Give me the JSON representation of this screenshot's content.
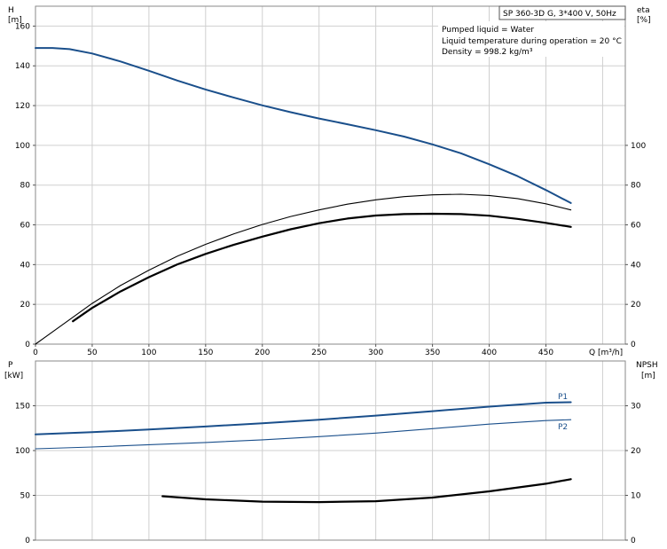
{
  "chart_data": [
    {
      "type": "line",
      "title": "SP 360-3D G, 3*400 V, 50Hz",
      "info_lines": [
        "Pumped liquid = Water",
        "Liquid temperature during operation = 20 °C",
        "Density = 998.2 kg/m³"
      ],
      "xlabel": "Q [m³/h]",
      "ylabel_left": [
        "H",
        "[m]"
      ],
      "ylabel_right": [
        "eta",
        "[%]"
      ],
      "xlim": [
        0,
        520
      ],
      "ylim_left": [
        0,
        170
      ],
      "ylim_right": [
        0,
        170
      ],
      "x_ticks": [
        0,
        50,
        100,
        150,
        200,
        250,
        300,
        350,
        400,
        450
      ],
      "y_ticks_left": [
        0,
        20,
        40,
        60,
        80,
        100,
        120,
        140,
        160
      ],
      "y_ticks_right": [
        0,
        20,
        40,
        60,
        80,
        100
      ],
      "grid": true,
      "series": [
        {
          "axis": "left",
          "color": "#1a4f8b",
          "width": 2,
          "x": [
            0,
            15,
            30,
            50,
            75,
            100,
            125,
            150,
            175,
            200,
            225,
            250,
            275,
            300,
            325,
            350,
            375,
            400,
            425,
            450,
            472
          ],
          "y": [
            149,
            149,
            148.4,
            146.2,
            142.2,
            137.5,
            132.6,
            128.1,
            124,
            120.1,
            116.7,
            113.5,
            110.6,
            107.6,
            104.4,
            100.5,
            96,
            90.5,
            84.5,
            77.5,
            71
          ]
        },
        {
          "axis": "right",
          "color": "#000000",
          "width": 1.1,
          "x": [
            0,
            33,
            50,
            75,
            100,
            125,
            150,
            175,
            200,
            225,
            250,
            275,
            300,
            325,
            350,
            375,
            400,
            425,
            450,
            472
          ],
          "y": [
            0,
            13.5,
            20.5,
            29.5,
            37.2,
            44.2,
            50.2,
            55.5,
            60.2,
            64.2,
            67.5,
            70.4,
            72.6,
            74.2,
            75.1,
            75.4,
            74.8,
            73.2,
            70.6,
            67.5
          ]
        },
        {
          "axis": "right",
          "color": "#000000",
          "width": 2.2,
          "x": [
            33,
            50,
            75,
            100,
            125,
            150,
            175,
            200,
            225,
            250,
            275,
            300,
            325,
            350,
            375,
            400,
            425,
            450,
            472
          ],
          "y": [
            11.5,
            18.2,
            26.5,
            33.7,
            40.1,
            45.4,
            50,
            54.1,
            57.8,
            60.8,
            63.2,
            64.7,
            65.4,
            65.6,
            65.4,
            64.6,
            63,
            61,
            59
          ]
        }
      ]
    },
    {
      "type": "line",
      "xlabel": "",
      "ylabel_left": [
        "P",
        "[kW]"
      ],
      "ylabel_right": [
        "NPSH",
        "[m]"
      ],
      "xlim": [
        0,
        520
      ],
      "ylim_left": [
        0,
        200
      ],
      "ylim_right": [
        0,
        40
      ],
      "y_ticks_left": [
        0,
        50,
        100,
        150
      ],
      "y_ticks_right": [
        0,
        10,
        20,
        30
      ],
      "grid": true,
      "series": [
        {
          "name": "P1",
          "axis": "left",
          "color": "#1a4f8b",
          "width": 2,
          "x": [
            0,
            50,
            100,
            150,
            200,
            250,
            300,
            350,
            400,
            450,
            472
          ],
          "y": [
            118,
            120.5,
            123.5,
            126.8,
            130.5,
            134.5,
            139,
            144,
            149,
            153.5,
            154
          ]
        },
        {
          "name": "P2",
          "axis": "left",
          "color": "#1a4f8b",
          "width": 1.1,
          "x": [
            0,
            50,
            100,
            150,
            200,
            250,
            300,
            350,
            400,
            450,
            472
          ],
          "y": [
            102,
            104,
            106.5,
            109,
            112,
            115.5,
            119.5,
            124.5,
            129.5,
            133.5,
            134.5
          ]
        },
        {
          "axis": "right",
          "color": "#000000",
          "width": 2.2,
          "x": [
            112,
            150,
            200,
            250,
            300,
            350,
            400,
            450,
            472
          ],
          "y": [
            9.8,
            9.1,
            8.6,
            8.5,
            8.7,
            9.5,
            10.9,
            12.6,
            13.6
          ]
        }
      ]
    }
  ]
}
